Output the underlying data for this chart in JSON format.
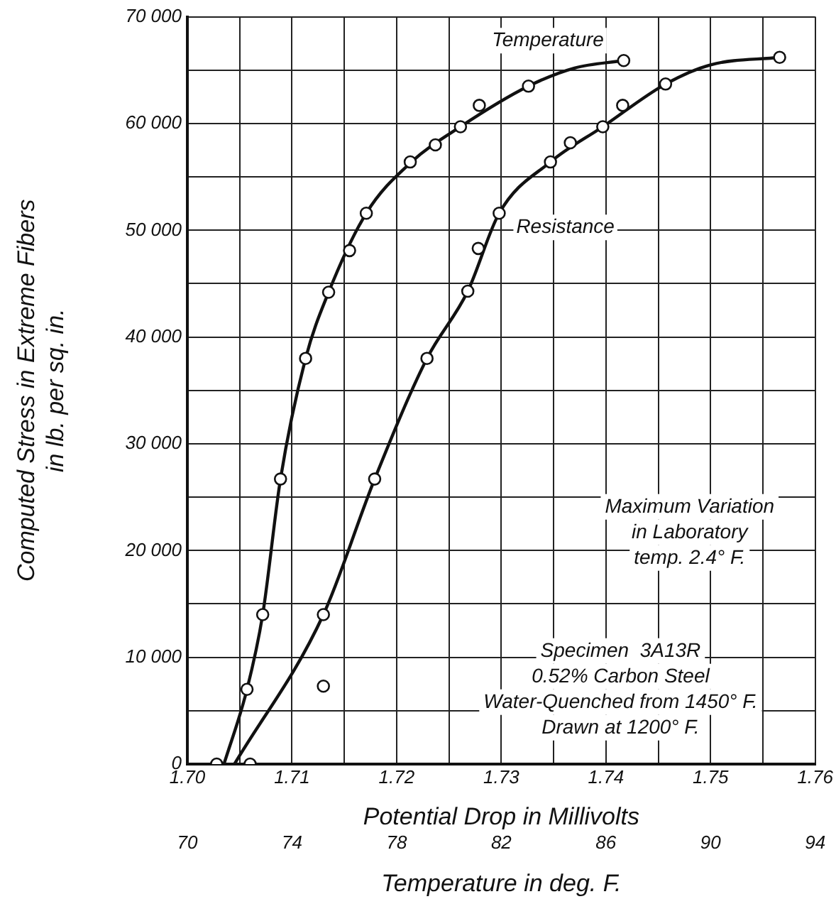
{
  "chart_data": {
    "type": "scatter",
    "xlabel": "Potential Drop in Millivolts",
    "ylabel": "Computed Stress in Extreme Fibers\nin lb. per sq. in.",
    "x2label": "Temperature in deg. F.",
    "xlim": [
      1.7,
      1.76
    ],
    "xticks": [
      {
        "value": 1.7,
        "label": "1.70"
      },
      {
        "value": 1.705,
        "label": null
      },
      {
        "value": 1.71,
        "label": "1.71"
      },
      {
        "value": 1.715,
        "label": null
      },
      {
        "value": 1.72,
        "label": "1.72"
      },
      {
        "value": 1.725,
        "label": null
      },
      {
        "value": 1.73,
        "label": "1.73"
      },
      {
        "value": 1.735,
        "label": null
      },
      {
        "value": 1.74,
        "label": "1.74"
      },
      {
        "value": 1.745,
        "label": null
      },
      {
        "value": 1.75,
        "label": "1.75"
      },
      {
        "value": 1.755,
        "label": null
      },
      {
        "value": 1.76,
        "label": "1.76"
      }
    ],
    "x2lim": [
      70,
      94
    ],
    "x2ticks": [
      70,
      74,
      78,
      82,
      86,
      90,
      94
    ],
    "ylim": [
      0,
      70000
    ],
    "yticks": [
      0,
      {
        "value": 5000,
        "label": null
      },
      {
        "value": 10000,
        "label": "10 000"
      },
      {
        "value": 15000,
        "label": null
      },
      {
        "value": 20000,
        "label": "20 000"
      },
      {
        "value": 25000,
        "label": null
      },
      {
        "value": 30000,
        "label": "30 000"
      },
      {
        "value": 35000,
        "label": null
      },
      {
        "value": 40000,
        "label": "40 000"
      },
      {
        "value": 45000,
        "label": null
      },
      {
        "value": 50000,
        "label": "50 000"
      },
      {
        "value": 55000,
        "label": null
      },
      {
        "value": 60000,
        "label": "60 000"
      },
      {
        "value": 65000,
        "label": null
      },
      {
        "value": 70000,
        "label": "70 000"
      }
    ],
    "grid": true,
    "legend": false,
    "marker": "circle",
    "series": [
      {
        "name": "Temperature",
        "color": "#111111",
        "x": [
          1.7028,
          1.7057,
          1.7072,
          1.7089,
          1.7113,
          1.7135,
          1.7155,
          1.7171,
          1.7213,
          1.7237,
          1.7261,
          1.7279,
          1.7326,
          1.7417
        ],
        "values": [
          0,
          7000,
          14000,
          26700,
          38000,
          44200,
          48100,
          51600,
          56400,
          58000,
          59700,
          61700,
          63500,
          65900
        ]
      },
      {
        "name": "Resistance",
        "color": "#111111",
        "x": [
          1.706,
          1.713,
          1.713,
          1.7179,
          1.7229,
          1.7268,
          1.7278,
          1.7298,
          1.7347,
          1.7366,
          1.7397,
          1.7416,
          1.7457,
          1.7566
        ],
        "values": [
          0,
          7300,
          14000,
          26700,
          38000,
          44300,
          48300,
          51600,
          56400,
          58200,
          59700,
          61700,
          63700,
          66200
        ]
      },
      {
        "type": "line",
        "color": "#111111",
        "marker": "none",
        "x": [
          1.7035,
          1.7057,
          1.7072,
          1.7089,
          1.7113,
          1.7135,
          1.7171,
          1.7213,
          1.7261,
          1.7326,
          1.737,
          1.7417
        ],
        "values": [
          0,
          7000,
          14000,
          26700,
          38000,
          44200,
          51600,
          56300,
          59700,
          63500,
          65200,
          65900
        ]
      },
      {
        "type": "line",
        "color": "#111111",
        "marker": "none",
        "x": [
          1.7045,
          1.713,
          1.7179,
          1.7229,
          1.7268,
          1.7298,
          1.7347,
          1.7397,
          1.7457,
          1.75,
          1.7566
        ],
        "values": [
          0,
          14000,
          26700,
          38000,
          44300,
          51600,
          56400,
          59700,
          63700,
          65500,
          66200
        ]
      }
    ],
    "annotations": [
      "Maximum Variation\nin Laboratory\ntemp. 2.4° F.",
      "Specimen  3A13R\n0.52% Carbon Steel\nWater-Quenched from 1450° F.\nDrawn at 1200° F."
    ]
  }
}
